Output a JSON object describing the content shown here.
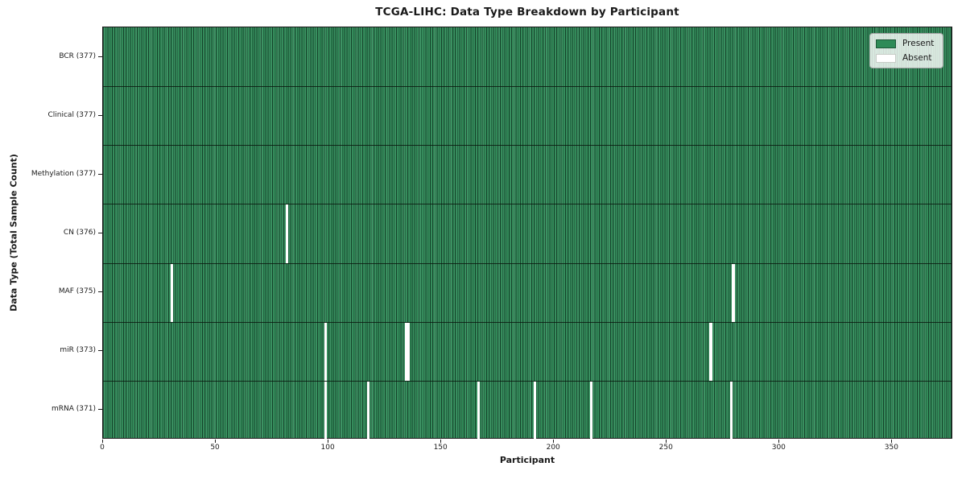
{
  "colors": {
    "present": "#2e8b57",
    "absent": "#ffffff",
    "bar_edge": "#16452c",
    "axis": "#1a1a1a"
  },
  "chart_data": {
    "type": "heatmap",
    "title": "TCGA-LIHC: Data Type Breakdown by Participant",
    "xlabel": "Participant",
    "ylabel": "Data Type (Total Sample Count)",
    "n_participants": 377,
    "xlim": [
      0,
      377
    ],
    "x_ticks": [
      0,
      50,
      100,
      150,
      200,
      250,
      300,
      350
    ],
    "grid": false,
    "legend": {
      "position": "upper right",
      "entries": [
        {
          "label": "Present",
          "color": "#2e8b57"
        },
        {
          "label": "Absent",
          "color": "#ffffff"
        }
      ]
    },
    "rows": [
      {
        "label": "BCR",
        "total": 377,
        "absent": []
      },
      {
        "label": "Clinical",
        "total": 377,
        "absent": []
      },
      {
        "label": "Methylation",
        "total": 377,
        "absent": []
      },
      {
        "label": "CN",
        "total": 376,
        "absent": [
          81
        ]
      },
      {
        "label": "MAF",
        "total": 375,
        "absent": [
          30,
          279
        ]
      },
      {
        "label": "miR",
        "total": 373,
        "absent": [
          98,
          134,
          135,
          269
        ]
      },
      {
        "label": "mRNA",
        "total": 371,
        "absent": [
          98,
          117,
          166,
          191,
          216,
          278
        ]
      }
    ]
  }
}
